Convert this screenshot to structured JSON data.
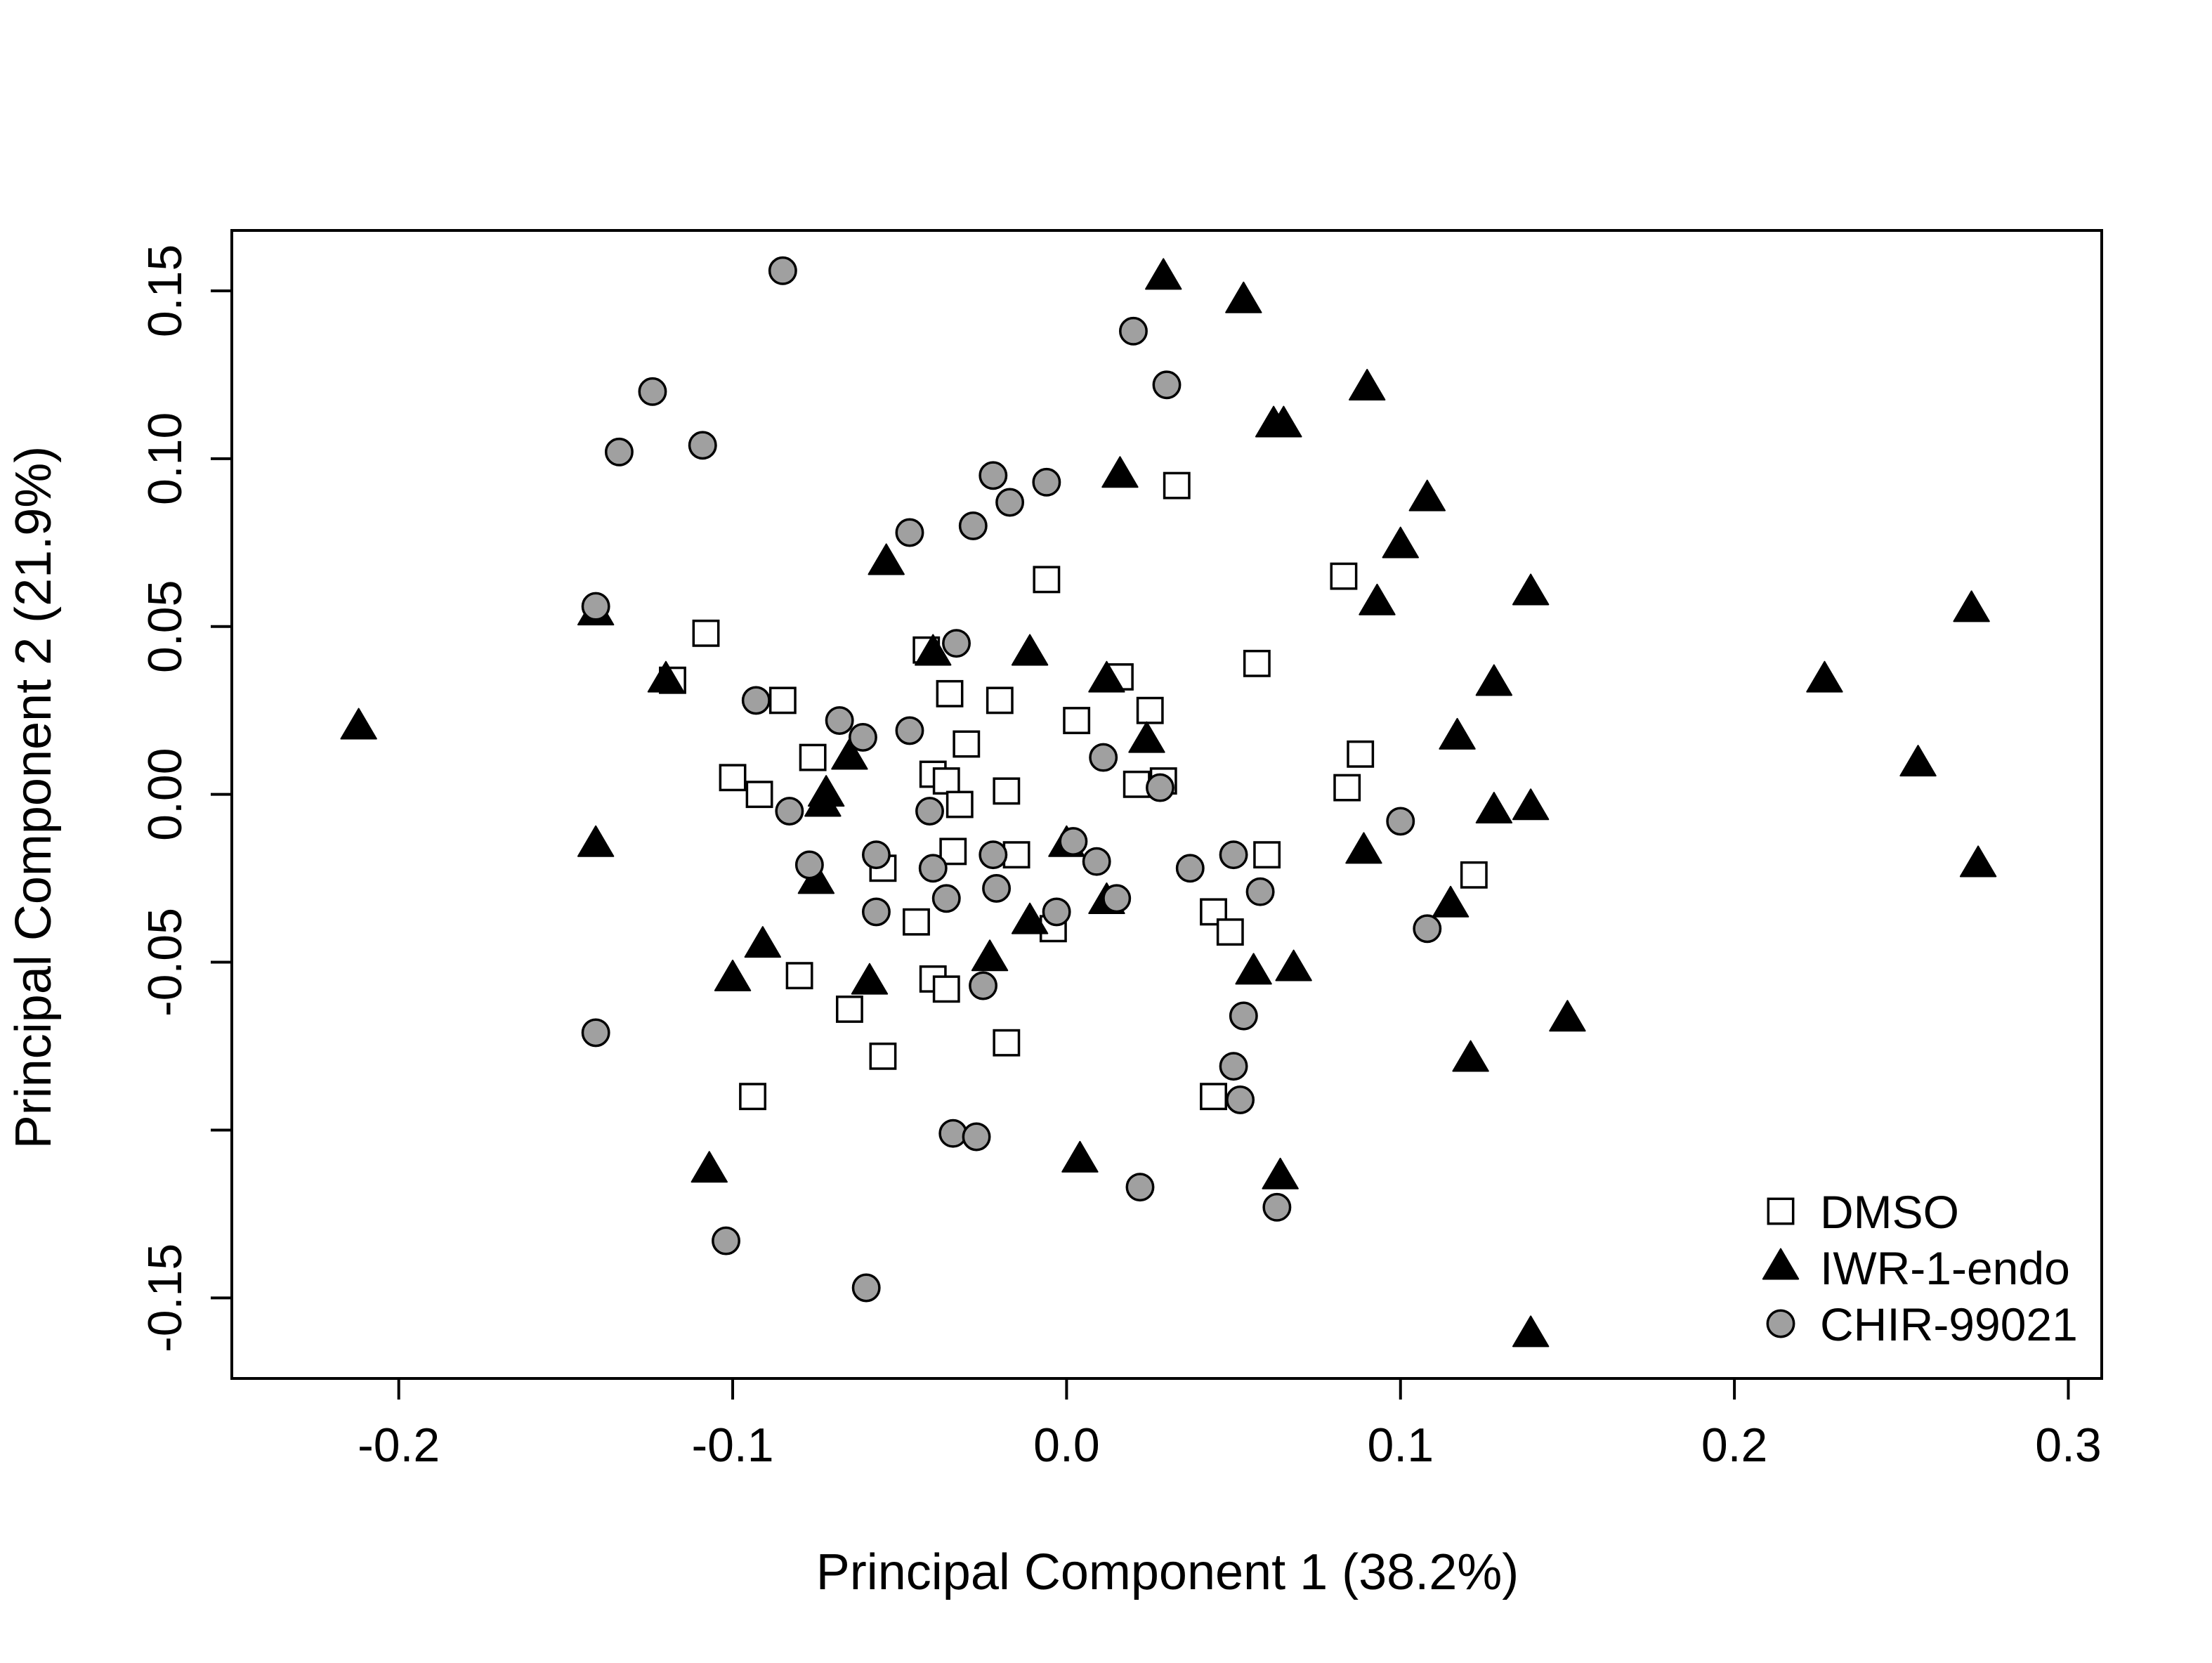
{
  "chart_data": {
    "type": "scatter",
    "title": "",
    "xlabel": "Principal Component 1 (38.2%)",
    "ylabel": "Principal Component 2 (21.9%)",
    "xlim": [
      -0.25,
      0.31
    ],
    "ylim": [
      -0.174,
      0.168
    ],
    "x_ticks": [
      -0.2,
      -0.1,
      0.0,
      0.1,
      0.2,
      0.3
    ],
    "x_tick_labels": [
      "-0.2",
      "-0.1",
      "0.0",
      "0.1",
      "0.2",
      "0.3"
    ],
    "y_ticks": [
      -0.15,
      -0.1,
      -0.05,
      0.0,
      0.05,
      0.1,
      0.15
    ],
    "y_tick_labels": [
      "-0.15",
      "",
      "-0.05",
      "0.00",
      "0.05",
      "0.10",
      "0.15"
    ],
    "grid": false,
    "legend_position": "bottom-right",
    "series": [
      {
        "name": "DMSO",
        "marker": "open-square",
        "color": "#000000",
        "fill": "#ffffff",
        "points": [
          [
            0.033,
            0.092
          ],
          [
            -0.006,
            0.064
          ],
          [
            0.083,
            0.065
          ],
          [
            -0.108,
            0.048
          ],
          [
            -0.042,
            0.043
          ],
          [
            -0.118,
            0.034
          ],
          [
            0.016,
            0.035
          ],
          [
            0.057,
            0.039
          ],
          [
            -0.085,
            0.028
          ],
          [
            -0.035,
            0.03
          ],
          [
            -0.02,
            0.028
          ],
          [
            0.025,
            0.025
          ],
          [
            0.003,
            0.022
          ],
          [
            -0.076,
            0.011
          ],
          [
            -0.03,
            0.015
          ],
          [
            0.088,
            0.012
          ],
          [
            -0.1,
            0.005
          ],
          [
            -0.04,
            0.006
          ],
          [
            -0.036,
            0.004
          ],
          [
            -0.092,
            0.0
          ],
          [
            -0.018,
            0.001
          ],
          [
            0.021,
            0.003
          ],
          [
            0.029,
            0.004
          ],
          [
            0.084,
            0.002
          ],
          [
            -0.032,
            -0.003
          ],
          [
            -0.034,
            -0.017
          ],
          [
            -0.015,
            -0.018
          ],
          [
            0.06,
            -0.018
          ],
          [
            -0.055,
            -0.022
          ],
          [
            0.122,
            -0.024
          ],
          [
            0.044,
            -0.035
          ],
          [
            -0.045,
            -0.038
          ],
          [
            0.049,
            -0.041
          ],
          [
            -0.004,
            -0.04
          ],
          [
            -0.08,
            -0.054
          ],
          [
            -0.04,
            -0.055
          ],
          [
            -0.036,
            -0.058
          ],
          [
            -0.065,
            -0.064
          ],
          [
            -0.018,
            -0.074
          ],
          [
            -0.055,
            -0.078
          ],
          [
            -0.094,
            -0.09
          ],
          [
            0.044,
            -0.09
          ]
        ]
      },
      {
        "name": "IWR-1-endo",
        "marker": "filled-triangle",
        "color": "#000000",
        "fill": "#000000",
        "points": [
          [
            0.029,
            0.154
          ],
          [
            0.053,
            0.147
          ],
          [
            0.09,
            0.121
          ],
          [
            0.062,
            0.11
          ],
          [
            0.065,
            0.11
          ],
          [
            0.016,
            0.095
          ],
          [
            0.108,
            0.088
          ],
          [
            0.1,
            0.074
          ],
          [
            -0.054,
            0.069
          ],
          [
            0.139,
            0.06
          ],
          [
            0.093,
            0.057
          ],
          [
            0.271,
            0.055
          ],
          [
            -0.141,
            0.054
          ],
          [
            -0.04,
            0.042
          ],
          [
            -0.011,
            0.042
          ],
          [
            -0.12,
            0.034
          ],
          [
            0.012,
            0.034
          ],
          [
            0.128,
            0.033
          ],
          [
            0.227,
            0.034
          ],
          [
            0.024,
            0.016
          ],
          [
            0.117,
            0.017
          ],
          [
            -0.212,
            0.02
          ],
          [
            -0.065,
            0.011
          ],
          [
            0.255,
            0.009
          ],
          [
            -0.072,
            0.0
          ],
          [
            -0.073,
            -0.003
          ],
          [
            0.128,
            -0.005
          ],
          [
            0.139,
            -0.004
          ],
          [
            -0.141,
            -0.015
          ],
          [
            0.0,
            -0.015
          ],
          [
            0.089,
            -0.017
          ],
          [
            0.273,
            -0.021
          ],
          [
            -0.075,
            -0.026
          ],
          [
            0.012,
            -0.032
          ],
          [
            0.115,
            -0.033
          ],
          [
            -0.011,
            -0.038
          ],
          [
            -0.091,
            -0.045
          ],
          [
            -0.023,
            -0.049
          ],
          [
            0.056,
            -0.053
          ],
          [
            0.068,
            -0.052
          ],
          [
            -0.1,
            -0.055
          ],
          [
            -0.059,
            -0.056
          ],
          [
            0.15,
            -0.067
          ],
          [
            0.121,
            -0.079
          ],
          [
            -0.107,
            -0.112
          ],
          [
            0.004,
            -0.109
          ],
          [
            0.064,
            -0.114
          ],
          [
            0.139,
            -0.161
          ]
        ]
      },
      {
        "name": "CHIR-99021",
        "marker": "filled-circle",
        "color": "#000000",
        "fill": "#a0a0a0",
        "points": [
          [
            -0.085,
            0.156
          ],
          [
            0.02,
            0.138
          ],
          [
            -0.124,
            0.12
          ],
          [
            0.03,
            0.122
          ],
          [
            -0.109,
            0.104
          ],
          [
            -0.134,
            0.102
          ],
          [
            -0.022,
            0.095
          ],
          [
            -0.006,
            0.093
          ],
          [
            -0.017,
            0.087
          ],
          [
            -0.028,
            0.08
          ],
          [
            -0.047,
            0.078
          ],
          [
            -0.141,
            0.056
          ],
          [
            -0.033,
            0.045
          ],
          [
            -0.093,
            0.028
          ],
          [
            -0.068,
            0.022
          ],
          [
            -0.047,
            0.019
          ],
          [
            -0.061,
            0.017
          ],
          [
            0.011,
            0.011
          ],
          [
            0.028,
            0.002
          ],
          [
            -0.083,
            -0.005
          ],
          [
            -0.041,
            -0.005
          ],
          [
            0.1,
            -0.008
          ],
          [
            0.002,
            -0.014
          ],
          [
            -0.057,
            -0.018
          ],
          [
            -0.022,
            -0.018
          ],
          [
            0.009,
            -0.02
          ],
          [
            0.05,
            -0.018
          ],
          [
            -0.077,
            -0.021
          ],
          [
            -0.04,
            -0.022
          ],
          [
            0.037,
            -0.022
          ],
          [
            -0.021,
            -0.028
          ],
          [
            0.058,
            -0.029
          ],
          [
            -0.036,
            -0.031
          ],
          [
            0.015,
            -0.031
          ],
          [
            -0.057,
            -0.035
          ],
          [
            -0.003,
            -0.035
          ],
          [
            0.108,
            -0.04
          ],
          [
            -0.025,
            -0.057
          ],
          [
            0.053,
            -0.066
          ],
          [
            -0.141,
            -0.071
          ],
          [
            0.05,
            -0.081
          ],
          [
            0.052,
            -0.091
          ],
          [
            -0.034,
            -0.101
          ],
          [
            -0.027,
            -0.102
          ],
          [
            0.022,
            -0.117
          ],
          [
            0.063,
            -0.123
          ],
          [
            -0.102,
            -0.133
          ],
          [
            -0.06,
            -0.147
          ]
        ]
      }
    ]
  }
}
